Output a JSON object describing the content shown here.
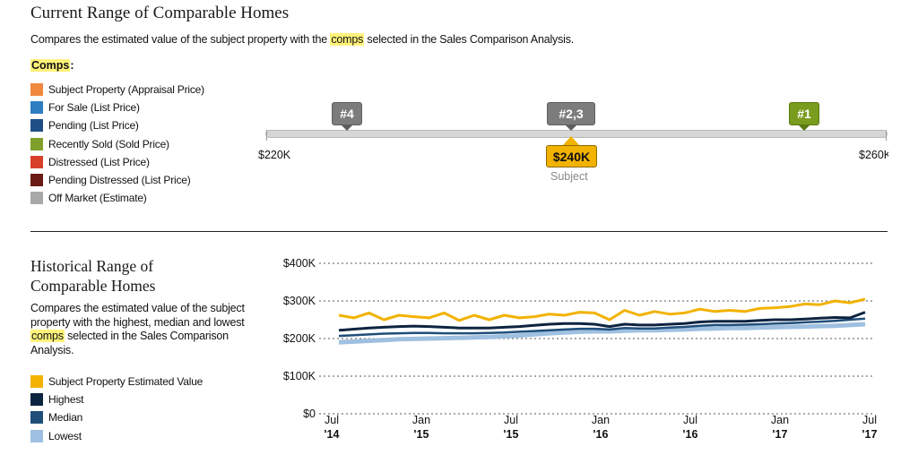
{
  "section1": {
    "title": "Current Range of Comparable Homes",
    "desc_before": "Compares the estimated value of the subject property with the ",
    "desc_highlight": "comps",
    "desc_after": " selected in the Sales Comparison Analysis.",
    "comps_label": "Comps",
    "comps_colon": ":",
    "legend": [
      {
        "label": "Subject Property  (Appraisal Price)",
        "color": "#f0883e"
      },
      {
        "label": "For Sale (List Price)",
        "color": "#2f7ec0"
      },
      {
        "label": "Pending (List Price)",
        "color": "#1f4e86"
      },
      {
        "label": "Recently  Sold (Sold Price)",
        "color": "#7fa02a"
      },
      {
        "label": "Distressed (List Price)",
        "color": "#d8402a"
      },
      {
        "label": "Pending Distressed (List Price)",
        "color": "#6a1a14"
      },
      {
        "label": "Off Market (Estimate)",
        "color": "#a8a8a8"
      }
    ],
    "range_min": "$220K",
    "range_max": "$260K",
    "markers": [
      {
        "label": "#4",
        "color": "#7c7c7c"
      },
      {
        "label": "#2,3",
        "color": "#7c7c7c"
      },
      {
        "label": "#1",
        "color": "#7a9c1e"
      }
    ],
    "subject_value": "$240K",
    "subject_caption": "Subject"
  },
  "section2": {
    "title": "Historical Range of Comparable Homes",
    "desc_before": "Compares the estimated value of the subject property with the highest, median and lowest ",
    "desc_highlight": "comps",
    "desc_after": " selected in the Sales Comparison Analysis.",
    "legend": [
      {
        "label": "Subject Property  Estimated Value",
        "color": "#f2b200"
      },
      {
        "label": "Highest",
        "color": "#0d2440"
      },
      {
        "label": "Median",
        "color": "#1f4e7a"
      },
      {
        "label": "Lowest",
        "color": "#9fc0e0"
      }
    ]
  },
  "chart_data": {
    "type": "line",
    "ylim": [
      0,
      400000
    ],
    "yticks": [
      "$0",
      "$100K",
      "$200K",
      "$300K",
      "$400K"
    ],
    "xtick_months": [
      "Jul",
      "Jan",
      "Jul",
      "Jan",
      "Jul",
      "Jan",
      "Jul"
    ],
    "xtick_years": [
      "'14",
      "'15",
      "'15",
      "'16",
      "'16",
      "'17",
      "'17"
    ],
    "x": [
      "2014-07",
      "2014-08",
      "2014-09",
      "2014-10",
      "2014-11",
      "2014-12",
      "2015-01",
      "2015-02",
      "2015-03",
      "2015-04",
      "2015-05",
      "2015-06",
      "2015-07",
      "2015-08",
      "2015-09",
      "2015-10",
      "2015-11",
      "2015-12",
      "2016-01",
      "2016-02",
      "2016-03",
      "2016-04",
      "2016-05",
      "2016-06",
      "2016-07",
      "2016-08",
      "2016-09",
      "2016-10",
      "2016-11",
      "2016-12",
      "2017-01",
      "2017-02",
      "2017-03",
      "2017-04",
      "2017-05",
      "2017-06"
    ],
    "series": [
      {
        "name": "Subject Property  Estimated Value",
        "color": "#f2b200",
        "width": 3,
        "values": [
          262000,
          255000,
          268000,
          250000,
          262000,
          258000,
          255000,
          268000,
          248000,
          262000,
          250000,
          262000,
          255000,
          258000,
          265000,
          262000,
          270000,
          268000,
          250000,
          275000,
          262000,
          272000,
          265000,
          268000,
          278000,
          272000,
          275000,
          272000,
          280000,
          282000,
          285000,
          292000,
          290000,
          300000,
          295000,
          305000
        ]
      },
      {
        "name": "Highest",
        "color": "#0d2440",
        "width": 3,
        "values": [
          222000,
          225000,
          228000,
          230000,
          232000,
          233000,
          232000,
          230000,
          228000,
          228000,
          228000,
          230000,
          232000,
          235000,
          238000,
          240000,
          240000,
          238000,
          232000,
          238000,
          236000,
          236000,
          238000,
          240000,
          244000,
          246000,
          246000,
          246000,
          248000,
          250000,
          250000,
          252000,
          254000,
          256000,
          255000,
          270000
        ]
      },
      {
        "name": "Median",
        "color": "#1f4e7a",
        "width": 2.5,
        "values": [
          207000,
          209000,
          211000,
          213000,
          214000,
          215000,
          215000,
          214000,
          214000,
          214000,
          215000,
          216000,
          218000,
          220000,
          222000,
          224000,
          226000,
          226000,
          224000,
          228000,
          227000,
          227000,
          229000,
          231000,
          234000,
          236000,
          236000,
          237000,
          238000,
          240000,
          241000,
          243000,
          245000,
          247000,
          250000,
          253000
        ]
      },
      {
        "name": "Lowest",
        "color": "#9fc0e0",
        "width": 5,
        "values": [
          190000,
          192000,
          194000,
          196000,
          198000,
          199000,
          200000,
          201000,
          202000,
          203000,
          204000,
          206000,
          208000,
          211000,
          214000,
          216000,
          218000,
          219000,
          219000,
          221000,
          222000,
          222000,
          223000,
          224000,
          226000,
          227000,
          228000,
          228000,
          229000,
          230000,
          231000,
          232000,
          233000,
          234000,
          236000,
          238000
        ]
      }
    ]
  }
}
